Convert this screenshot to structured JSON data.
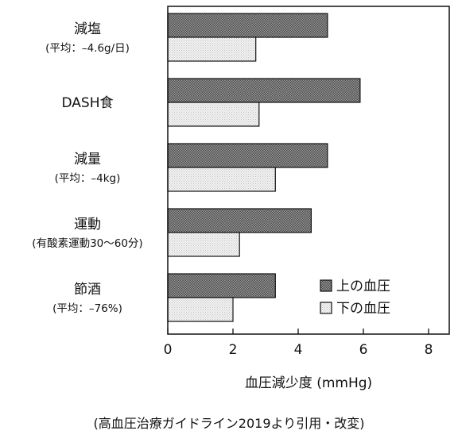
{
  "chart_data": {
    "type": "bar",
    "orientation": "horizontal",
    "categories": [
      {
        "label": "減塩",
        "sub": "(平均：–4.6g/日)"
      },
      {
        "label": "DASH食",
        "sub": ""
      },
      {
        "label": "減量",
        "sub": "(平均：–4kg)"
      },
      {
        "label": "運動",
        "sub": "(有酸素運動30〜60分)"
      },
      {
        "label": "節酒",
        "sub": "(平均：–76%)"
      }
    ],
    "series": [
      {
        "name": "上の血圧",
        "values": [
          4.9,
          5.9,
          4.9,
          4.4,
          3.3
        ],
        "color": "#7a7a7a"
      },
      {
        "name": "下の血圧",
        "values": [
          2.7,
          2.8,
          3.3,
          2.2,
          2.0
        ],
        "color": "#e4e4e4"
      }
    ],
    "xlim": [
      0,
      8
    ],
    "xticks": [
      "0",
      "2",
      "4",
      "6",
      "8"
    ],
    "xlabel": "血圧減少度 (mmHg)",
    "legend_position": "bottom-right",
    "grid": false
  },
  "source_note": "(高血圧治療ガイドライン2019より引用・改変)"
}
